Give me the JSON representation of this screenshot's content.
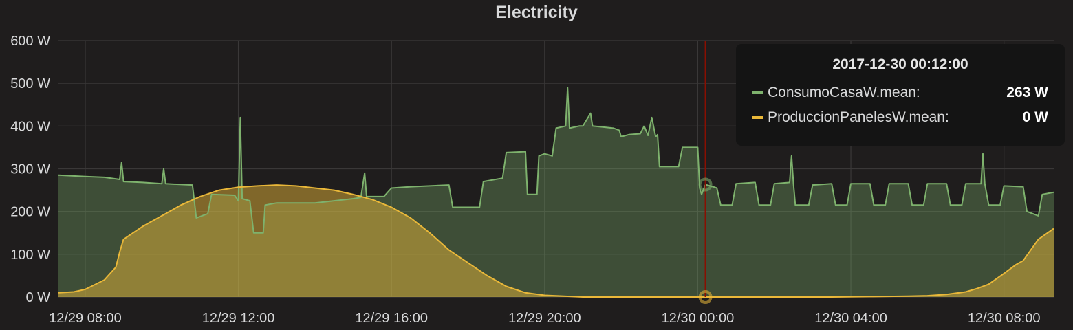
{
  "panel": {
    "title": "Electricity"
  },
  "colors": {
    "background": "#1f1d1d",
    "grid": "#3a3838",
    "consumo": "#7eb26d",
    "produccion": "#eab839",
    "crosshair": "#890f02"
  },
  "tooltip": {
    "time": "2017-12-30 00:12:00",
    "rows": [
      {
        "name": "ConsumoCasaW.mean:",
        "value": "263 W",
        "color": "#7eb26d"
      },
      {
        "name": "ProduccionPanelesW.mean:",
        "value": "0 W",
        "color": "#eab839"
      }
    ]
  },
  "chart_data": {
    "type": "area",
    "title": "Electricity",
    "xlabel": "",
    "ylabel": "",
    "x_unit": "hours since 12/29 08:00",
    "xlim": [
      -0.7,
      25.3
    ],
    "ylim": [
      0,
      600
    ],
    "y_ticks": [
      "0 W",
      "100 W",
      "200 W",
      "300 W",
      "400 W",
      "500 W",
      "600 W"
    ],
    "y_tick_values": [
      0,
      100,
      200,
      300,
      400,
      500,
      600
    ],
    "x_ticks": [
      "12/29 08:00",
      "12/29 12:00",
      "12/29 16:00",
      "12/29 20:00",
      "12/30 00:00",
      "12/30 04:00",
      "12/30 08:00"
    ],
    "x_tick_values": [
      0,
      4,
      8,
      12,
      16,
      20,
      24
    ],
    "grid": true,
    "crosshair_x": 16.2,
    "series": [
      {
        "name": "ConsumoCasaW.mean",
        "points": [
          [
            -0.7,
            285
          ],
          [
            0,
            282
          ],
          [
            0.5,
            280
          ],
          [
            0.9,
            275
          ],
          [
            0.95,
            315
          ],
          [
            1.0,
            270
          ],
          [
            1.5,
            268
          ],
          [
            2.0,
            265
          ],
          [
            2.05,
            300
          ],
          [
            2.1,
            265
          ],
          [
            2.8,
            262
          ],
          [
            2.9,
            185
          ],
          [
            3.2,
            195
          ],
          [
            3.3,
            240
          ],
          [
            3.9,
            238
          ],
          [
            4.0,
            225
          ],
          [
            4.05,
            420
          ],
          [
            4.1,
            230
          ],
          [
            4.3,
            225
          ],
          [
            4.4,
            150
          ],
          [
            4.65,
            150
          ],
          [
            4.7,
            215
          ],
          [
            5.0,
            220
          ],
          [
            6.0,
            220
          ],
          [
            6.5,
            225
          ],
          [
            7.0,
            230
          ],
          [
            7.2,
            233
          ],
          [
            7.3,
            290
          ],
          [
            7.35,
            235
          ],
          [
            7.8,
            235
          ],
          [
            8.0,
            255
          ],
          [
            8.5,
            258
          ],
          [
            9.0,
            260
          ],
          [
            9.5,
            262
          ],
          [
            9.6,
            210
          ],
          [
            10.0,
            210
          ],
          [
            10.3,
            210
          ],
          [
            10.4,
            270
          ],
          [
            10.9,
            278
          ],
          [
            11.0,
            338
          ],
          [
            11.5,
            340
          ],
          [
            11.55,
            240
          ],
          [
            11.8,
            240
          ],
          [
            11.85,
            330
          ],
          [
            12.0,
            335
          ],
          [
            12.2,
            330
          ],
          [
            12.3,
            395
          ],
          [
            12.55,
            400
          ],
          [
            12.6,
            490
          ],
          [
            12.65,
            395
          ],
          [
            12.9,
            400
          ],
          [
            13.0,
            400
          ],
          [
            13.2,
            430
          ],
          [
            13.25,
            400
          ],
          [
            13.5,
            398
          ],
          [
            13.8,
            395
          ],
          [
            13.95,
            390
          ],
          [
            14.0,
            375
          ],
          [
            14.2,
            380
          ],
          [
            14.5,
            382
          ],
          [
            14.6,
            400
          ],
          [
            14.7,
            378
          ],
          [
            14.8,
            420
          ],
          [
            14.9,
            375
          ],
          [
            14.95,
            380
          ],
          [
            15.0,
            305
          ],
          [
            15.5,
            305
          ],
          [
            15.6,
            350
          ],
          [
            16.0,
            350
          ],
          [
            16.05,
            255
          ],
          [
            16.1,
            240
          ],
          [
            16.2,
            263
          ],
          [
            16.4,
            258
          ],
          [
            16.5,
            255
          ],
          [
            16.6,
            215
          ],
          [
            16.9,
            215
          ],
          [
            17.0,
            265
          ],
          [
            17.5,
            268
          ],
          [
            17.6,
            215
          ],
          [
            17.9,
            215
          ],
          [
            18.0,
            265
          ],
          [
            18.4,
            268
          ],
          [
            18.45,
            330
          ],
          [
            18.5,
            265
          ],
          [
            18.55,
            215
          ],
          [
            18.9,
            215
          ],
          [
            19.0,
            262
          ],
          [
            19.5,
            265
          ],
          [
            19.6,
            215
          ],
          [
            19.9,
            215
          ],
          [
            20.0,
            265
          ],
          [
            20.5,
            265
          ],
          [
            20.6,
            215
          ],
          [
            20.9,
            215
          ],
          [
            21.0,
            265
          ],
          [
            21.5,
            265
          ],
          [
            21.6,
            215
          ],
          [
            21.9,
            215
          ],
          [
            22.0,
            265
          ],
          [
            22.5,
            265
          ],
          [
            22.6,
            215
          ],
          [
            22.9,
            215
          ],
          [
            23.0,
            265
          ],
          [
            23.4,
            265
          ],
          [
            23.45,
            335
          ],
          [
            23.5,
            265
          ],
          [
            23.6,
            215
          ],
          [
            23.9,
            215
          ],
          [
            24.0,
            260
          ],
          [
            24.5,
            258
          ],
          [
            24.6,
            200
          ],
          [
            24.9,
            190
          ],
          [
            25.0,
            240
          ],
          [
            25.3,
            245
          ]
        ]
      },
      {
        "name": "ProduccionPanelesW.mean",
        "points": [
          [
            -0.7,
            10
          ],
          [
            -0.3,
            12
          ],
          [
            0,
            18
          ],
          [
            0.5,
            40
          ],
          [
            0.8,
            70
          ],
          [
            0.9,
            105
          ],
          [
            1.0,
            135
          ],
          [
            1.5,
            165
          ],
          [
            2.0,
            190
          ],
          [
            2.5,
            215
          ],
          [
            3.0,
            235
          ],
          [
            3.5,
            250
          ],
          [
            4.0,
            257
          ],
          [
            4.5,
            260
          ],
          [
            5.0,
            262
          ],
          [
            5.5,
            260
          ],
          [
            6.0,
            255
          ],
          [
            6.5,
            250
          ],
          [
            7.0,
            240
          ],
          [
            7.5,
            228
          ],
          [
            8.0,
            210
          ],
          [
            8.5,
            185
          ],
          [
            9.0,
            150
          ],
          [
            9.5,
            110
          ],
          [
            10.0,
            80
          ],
          [
            10.5,
            50
          ],
          [
            11.0,
            25
          ],
          [
            11.5,
            10
          ],
          [
            12.0,
            4
          ],
          [
            12.5,
            2
          ],
          [
            13.0,
            0
          ],
          [
            16.0,
            0
          ],
          [
            19.5,
            0
          ],
          [
            20.5,
            1
          ],
          [
            21.5,
            2
          ],
          [
            22.0,
            3
          ],
          [
            22.5,
            6
          ],
          [
            23.0,
            12
          ],
          [
            23.3,
            20
          ],
          [
            23.6,
            30
          ],
          [
            24.0,
            55
          ],
          [
            24.3,
            75
          ],
          [
            24.5,
            85
          ],
          [
            24.7,
            110
          ],
          [
            24.9,
            135
          ],
          [
            25.3,
            160
          ]
        ]
      }
    ]
  }
}
